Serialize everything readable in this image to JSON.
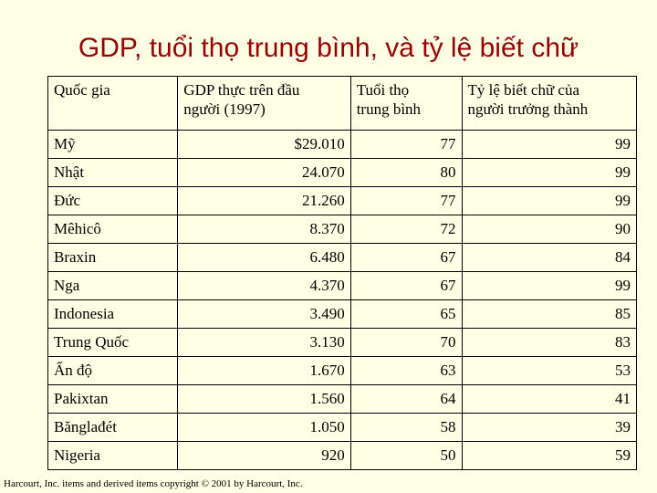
{
  "title": "GDP, tuổi thọ trung bình, và tỷ lệ biết chữ",
  "table": {
    "headers": [
      "Quốc gia",
      "GDP thực trên đầu người (1997)",
      "Tuổi thọ trung bình",
      "Tỷ lệ biết chữ của người trưởng thành"
    ],
    "header_lines": [
      [
        "Quốc gia"
      ],
      [
        "GDP thực trên đầu",
        "người (1997)"
      ],
      [
        "Tuổi thọ",
        "trung bình"
      ],
      [
        "Tỷ lệ biết chữ của",
        "người trưởng thành"
      ]
    ],
    "rows": [
      [
        "Mỹ",
        "$29.010",
        "77",
        "99"
      ],
      [
        "Nhật",
        "24.070",
        "80",
        "99"
      ],
      [
        "Đức",
        "21.260",
        "77",
        "99"
      ],
      [
        "Mêhicô",
        "8.370",
        "72",
        "90"
      ],
      [
        "Braxin",
        "6.480",
        "67",
        "84"
      ],
      [
        "Nga",
        "4.370",
        "67",
        "99"
      ],
      [
        "Indonesia",
        "3.490",
        "65",
        "85"
      ],
      [
        "Trung Quốc",
        "3.130",
        "70",
        "83"
      ],
      [
        "Ấn độ",
        "1.670",
        "63",
        "53"
      ],
      [
        "Pakixtan",
        "1.560",
        "64",
        "41"
      ],
      [
        "Bănglađét",
        "1.050",
        "58",
        "39"
      ],
      [
        "Nigeria",
        "920",
        "50",
        "59"
      ]
    ]
  },
  "footer": "Harcourt, Inc. items and derived items copyright © 2001 by Harcourt, Inc."
}
